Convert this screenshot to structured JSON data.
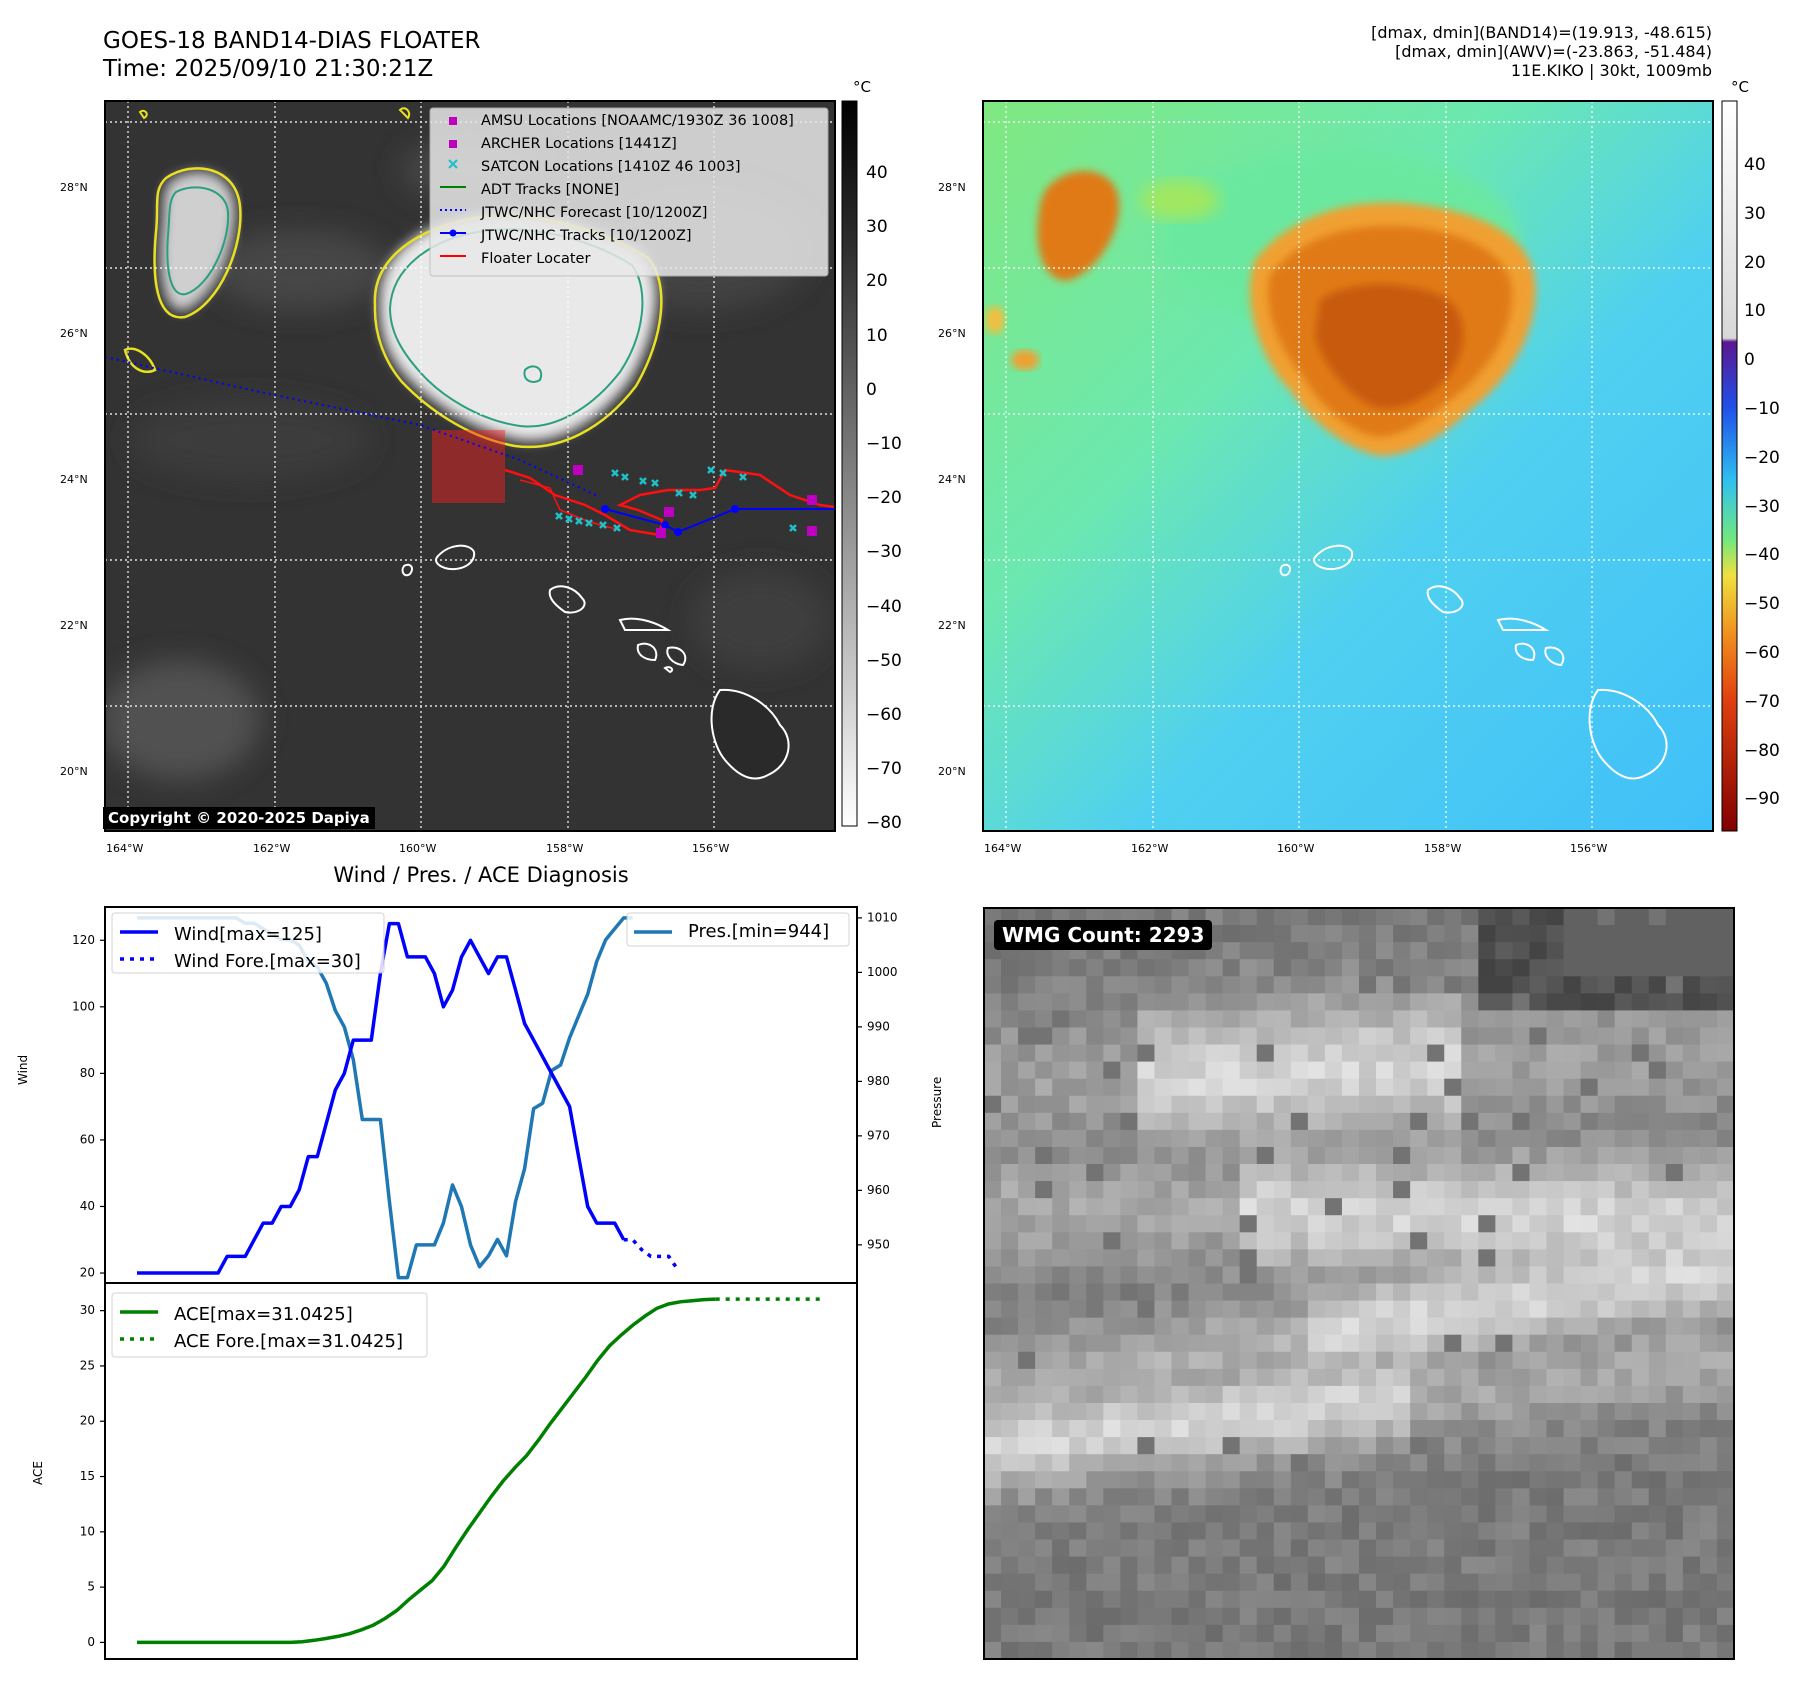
{
  "header": {
    "title_line1": "GOES-18 BAND14-DIAS FLOATER",
    "title_line2": "Time: 2025/09/10 21:30:21Z",
    "info_line1": "[dmax, dmin](BAND14)=(19.913, -48.615)",
    "info_line2": "[dmax, dmin](AWV)=(-23.863, -51.484)",
    "info_line3": "11E.KIKO | 30kt, 1009mb"
  },
  "map_left": {
    "lat_labels": [
      "28°N",
      "26°N",
      "24°N",
      "22°N",
      "20°N"
    ],
    "lon_labels": [
      "164°W",
      "162°W",
      "160°W",
      "158°W",
      "156°W"
    ],
    "copyright": "Copyright © 2020-2025 Dapiya",
    "colorbar_unit": "°C",
    "colorbar_ticks": [
      "40",
      "30",
      "20",
      "10",
      "0",
      "−10",
      "−20",
      "−30",
      "−40",
      "−50",
      "−60",
      "−70",
      "−80"
    ],
    "legend": [
      {
        "label": "AMSU Locations [NOAAMC/1930Z 36 1008]",
        "marker": "square",
        "color": "#c000c0"
      },
      {
        "label": "ARCHER Locations [1441Z]",
        "marker": "square",
        "color": "#c000c0"
      },
      {
        "label": "SATCON Locations [1410Z 46 1003]",
        "marker": "x",
        "color": "#20c0c8"
      },
      {
        "label": "ADT Tracks [NONE]",
        "marker": "line",
        "color": "#008000"
      },
      {
        "label": "JTWC/NHC Forecast [10/1200Z]",
        "marker": "dotted",
        "color": "#0000ff"
      },
      {
        "label": "JTWC/NHC Tracks [10/1200Z]",
        "marker": "line-dot",
        "color": "#0000ff"
      },
      {
        "label": "Floater Locater",
        "marker": "line",
        "color": "#ff0000"
      }
    ]
  },
  "map_right": {
    "lat_labels": [
      "28°N",
      "26°N",
      "24°N",
      "22°N",
      "20°N"
    ],
    "lon_labels": [
      "164°W",
      "162°W",
      "160°W",
      "158°W",
      "156°W"
    ],
    "colorbar_unit": "°C",
    "colorbar_ticks": [
      "40",
      "30",
      "20",
      "10",
      "0",
      "−10",
      "−20",
      "−30",
      "−40",
      "−50",
      "−60",
      "−70",
      "−80",
      "−90"
    ]
  },
  "wmg": {
    "label": "WMG Count: 2293"
  },
  "chart_data": [
    {
      "type": "line",
      "title": "Wind / Pres. / ACE Diagnosis",
      "ylabel": "Wind",
      "y2label": "Pressure",
      "ylim": [
        17,
        130
      ],
      "y2lim": [
        943,
        1012
      ],
      "yticks": [
        20,
        40,
        60,
        80,
        100,
        120
      ],
      "y2ticks": [
        950,
        960,
        970,
        980,
        990,
        1000,
        1010
      ],
      "series": [
        {
          "name": "Wind[max=125]",
          "axis": "left",
          "color": "#0000ff",
          "style": "solid",
          "values": [
            20,
            20,
            20,
            20,
            20,
            20,
            20,
            20,
            20,
            20,
            25,
            25,
            25,
            30,
            35,
            35,
            40,
            40,
            45,
            55,
            55,
            65,
            75,
            80,
            90,
            90,
            90,
            110,
            125,
            125,
            115,
            115,
            115,
            110,
            100,
            105,
            115,
            120,
            115,
            110,
            115,
            115,
            105,
            95,
            90,
            85,
            80,
            75,
            70,
            55,
            40,
            35,
            35,
            35,
            30
          ]
        },
        {
          "name": "Wind Fore.[max=30]",
          "axis": "left",
          "color": "#0000ff",
          "style": "dotted",
          "values": [
            30,
            30,
            27,
            25,
            25,
            25,
            21
          ]
        },
        {
          "name": "Pres.[min=944]",
          "axis": "right",
          "color": "#1f77b4",
          "style": "solid",
          "values": [
            1010,
            1010,
            1010,
            1010,
            1010,
            1010,
            1010,
            1010,
            1010,
            1010,
            1010,
            1010,
            1009,
            1009,
            1008,
            1007,
            1006,
            1006,
            1005,
            1002,
            1001,
            998,
            993,
            990,
            984,
            973,
            973,
            973,
            958,
            944,
            944,
            950,
            950,
            950,
            954,
            961,
            957,
            950,
            946,
            948,
            951,
            948,
            958,
            964,
            975,
            976,
            982,
            983,
            988,
            992,
            996,
            1002,
            1006,
            1008,
            1010,
            1010
          ]
        },
        {
          "name": "ACE[max=31.0425]",
          "axis": "ace",
          "color": "#008000",
          "style": "solid",
          "values": [
            0,
            0,
            0,
            0,
            0,
            0,
            0,
            0,
            0,
            0,
            0,
            0,
            0,
            0,
            0.06,
            0.19,
            0.35,
            0.54,
            0.79,
            1.14,
            1.56,
            2.16,
            2.89,
            3.85,
            4.73,
            5.6,
            6.9,
            8.6,
            10.2,
            11.7,
            13.2,
            14.6,
            15.8,
            16.9,
            18.3,
            19.8,
            21.2,
            22.6,
            24.0,
            25.5,
            26.8,
            27.8,
            28.7,
            29.5,
            30.2,
            30.6,
            30.8,
            30.9,
            31.0,
            31.0425
          ]
        },
        {
          "name": "ACE Fore.[max=31.0425]",
          "axis": "ace",
          "color": "#008000",
          "style": "dotted",
          "values": [
            31.0425,
            31.0425,
            31.0425,
            31.0425,
            31.0425,
            31.0425,
            31.0425,
            31.0425,
            31.0425,
            31.0425
          ]
        }
      ],
      "ace_ylabel": "ACE",
      "ace_ylim": [
        -1.5,
        32.5
      ],
      "ace_yticks": [
        0,
        5,
        10,
        15,
        20,
        25,
        30
      ],
      "grid": false,
      "legend_placement": [
        "top-left",
        "top-right",
        "top-left"
      ]
    },
    {
      "type": "heatmap",
      "title": "",
      "colormap": "gray",
      "label": "WMG Count: 2293",
      "grid": false
    }
  ]
}
